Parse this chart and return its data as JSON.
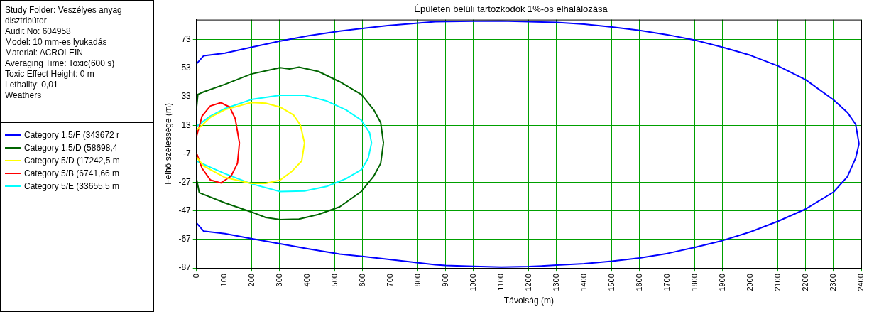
{
  "chart_data": {
    "type": "line",
    "title": "Épületen belüli tartózkodók 1%-os elhalálozása",
    "xlabel": "Távolság (m)",
    "ylabel": "Felhő szélessége (m)",
    "annotations": [
      "Study Folder: Veszélyes anyag disztribútor",
      "Audit No: 604958",
      "Model: 10 mm-es lyukadás",
      "Material: ACROLEIN",
      "Averaging Time: Toxic(600 s)",
      "Toxic Effect Height: 0 m",
      "Lethality: 0,01",
      "Weathers"
    ],
    "xlim": [
      0,
      2400
    ],
    "xticks": [
      0,
      100,
      200,
      300,
      400,
      500,
      600,
      700,
      800,
      900,
      1000,
      1100,
      1200,
      1300,
      1400,
      1500,
      1600,
      1700,
      1800,
      1900,
      2000,
      2100,
      2200,
      2300,
      2400
    ],
    "ylim": [
      -87,
      87
    ],
    "yticks": [
      -87,
      -67,
      -47,
      -27,
      -7,
      13,
      33,
      53,
      73
    ],
    "grid": true,
    "legend": "left",
    "line_style": "solid",
    "series": [
      {
        "name": "Category 1.5/F (343672 r",
        "color": "#0000ff",
        "x": [
          0,
          26,
          103,
          198,
          302,
          405,
          517,
          690,
          862,
          1000,
          1100,
          1300,
          1400,
          1500,
          1600,
          1700,
          1800,
          1900,
          2000,
          2100,
          2200,
          2300,
          2350,
          2380,
          2392,
          null,
          0,
          26,
          103,
          198,
          302,
          405,
          517,
          690,
          862,
          900,
          1000,
          1100,
          1200,
          1300,
          1400,
          1500,
          1600,
          1700,
          1800,
          1900,
          2000,
          2100,
          2200,
          2300,
          2350,
          2380,
          2392
        ],
        "values": [
          56,
          61.7,
          63.5,
          67.6,
          72,
          75.7,
          79,
          82.8,
          85.5,
          85.9,
          86,
          85,
          83.8,
          81.8,
          79.5,
          76.4,
          72.6,
          67.6,
          62,
          54.5,
          44.8,
          30.8,
          22,
          13.6,
          0,
          null,
          -55.4,
          -61.2,
          -62.9,
          -66.4,
          -70,
          -73.6,
          -77.2,
          -80.8,
          -84.7,
          -85.2,
          -85.8,
          -86.3,
          -86,
          -85,
          -83.9,
          -82.2,
          -80,
          -76.8,
          -72.5,
          -67.7,
          -61.7,
          -54.2,
          -45.6,
          -33.8,
          -23,
          -10,
          0
        ]
      },
      {
        "name": "Category 1.5/D (58698,4",
        "color": "#006400",
        "x": [
          0,
          5,
          26,
          103,
          198,
          302,
          336,
          370,
          440,
          517,
          595,
          640,
          665,
          675,
          null,
          0,
          10,
          103,
          198,
          250,
          302,
          370,
          440,
          517,
          595,
          640,
          665,
          675
        ],
        "values": [
          24.7,
          34.6,
          36.4,
          41.7,
          48.9,
          53.3,
          52.4,
          53.7,
          50.7,
          43.5,
          34.6,
          23.8,
          14.9,
          0.6,
          null,
          -24.4,
          -34.2,
          -41.4,
          -47.7,
          -51.6,
          -53.1,
          -52.7,
          -49.5,
          -44.1,
          -33.4,
          -22.6,
          -13.7,
          0.6
        ]
      },
      {
        "name": "Category 5/D (17242,5 m",
        "color": "#ffff00",
        "x": [
          0,
          50,
          103,
          198,
          250,
          302,
          350,
          375,
          390,
          null,
          0,
          26,
          103,
          198,
          250,
          302,
          345,
          380,
          390
        ],
        "values": [
          9.5,
          18.5,
          23.9,
          28.9,
          28.4,
          25.7,
          20.3,
          13.2,
          0.6,
          null,
          -9.2,
          -15.5,
          -23.6,
          -27.7,
          -27.7,
          -25.4,
          -19.2,
          -12,
          0.6
        ]
      },
      {
        "name": "Category 5/B (6741,66 m",
        "color": "#ff0000",
        "x": [
          0,
          20,
          50,
          88,
          120,
          140,
          155,
          null,
          0,
          20,
          50,
          88,
          125,
          148,
          155
        ],
        "values": [
          5,
          19.4,
          26.5,
          28.8,
          25.7,
          17.6,
          0.6,
          null,
          -6.3,
          -17.1,
          -25.3,
          -27.4,
          -22.6,
          -13.7,
          0.6
        ]
      },
      {
        "name": "Category 5/E (33655,5 m",
        "color": "#00ffff",
        "x": [
          0,
          50,
          103,
          198,
          302,
          390,
          470,
          540,
          595,
          625,
          632,
          null,
          0,
          50,
          103,
          198,
          302,
          390,
          470,
          540,
          595,
          620,
          632
        ],
        "values": [
          12.2,
          19.4,
          24.7,
          31,
          34,
          34,
          30,
          23.8,
          16.6,
          7.7,
          0.6,
          null,
          -12,
          -16.4,
          -20.9,
          -28,
          -33.4,
          -33,
          -29.8,
          -24.4,
          -18.2,
          -10.1,
          0.6
        ]
      }
    ]
  }
}
